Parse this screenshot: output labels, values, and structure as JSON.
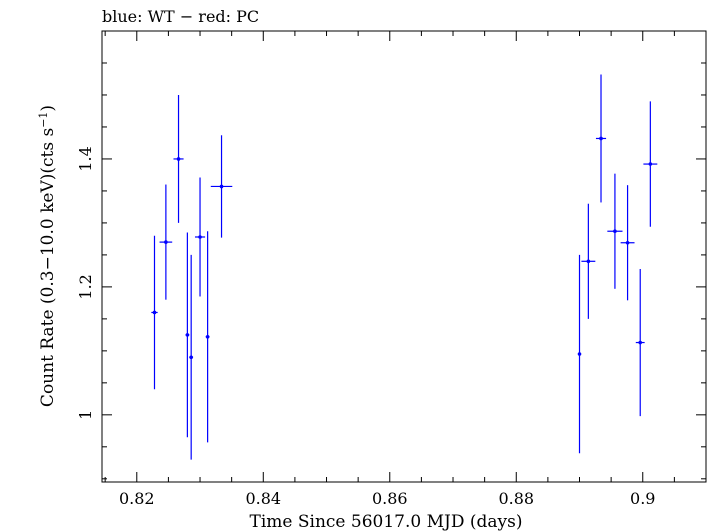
{
  "chart_data": {
    "type": "scatter",
    "title": "blue: WT − red: PC",
    "xlabel": "Time Since 56017.0 MJD (days)",
    "ylabel_main": "Count Rate (0.3−10.0 keV)(cts s",
    "ylabel_sup": "−1",
    "ylabel_end": ")",
    "xlim": [
      0.8145,
      0.91
    ],
    "ylim": [
      0.895,
      1.6
    ],
    "xticks": [
      0.82,
      0.84,
      0.86,
      0.88,
      0.9
    ],
    "xtick_labels": [
      "0.82",
      "0.84",
      "0.86",
      "0.88",
      "0.9"
    ],
    "yticks": [
      1.0,
      1.2,
      1.4
    ],
    "ytick_labels": [
      "1",
      "1.2",
      "1.4"
    ],
    "grid": false,
    "series": [
      {
        "color": "#0000ff",
        "points": [
          {
            "x": 0.8228,
            "y": 1.16,
            "xerr": 0.0005,
            "yerr": 0.12
          },
          {
            "x": 0.8246,
            "y": 1.27,
            "xerr": 0.001,
            "yerr": 0.09
          },
          {
            "x": 0.8266,
            "y": 1.4,
            "xerr": 0.0008,
            "yerr": 0.1
          },
          {
            "x": 0.828,
            "y": 1.125,
            "xerr": 0.0003,
            "yerr": 0.16
          },
          {
            "x": 0.8286,
            "y": 1.09,
            "xerr": 0.0003,
            "yerr": 0.16
          },
          {
            "x": 0.83,
            "y": 1.278,
            "xerr": 0.0008,
            "yerr": 0.093
          },
          {
            "x": 0.8312,
            "y": 1.122,
            "xerr": 0.0003,
            "yerr": 0.165
          },
          {
            "x": 0.8334,
            "y": 1.357,
            "xerr": 0.0017,
            "yerr": 0.08
          },
          {
            "x": 0.89,
            "y": 1.095,
            "xerr": 0.0002,
            "yerr": 0.155
          },
          {
            "x": 0.8914,
            "y": 1.24,
            "xerr": 0.0011,
            "yerr": 0.09
          },
          {
            "x": 0.8934,
            "y": 1.432,
            "xerr": 0.0008,
            "yerr": 0.1
          },
          {
            "x": 0.8956,
            "y": 1.287,
            "xerr": 0.0012,
            "yerr": 0.09
          },
          {
            "x": 0.8976,
            "y": 1.269,
            "xerr": 0.0011,
            "yerr": 0.09
          },
          {
            "x": 0.8996,
            "y": 1.113,
            "xerr": 0.0007,
            "yerr": 0.115
          },
          {
            "x": 0.9012,
            "y": 1.392,
            "xerr": 0.0011,
            "yerr": 0.098
          }
        ]
      }
    ]
  }
}
